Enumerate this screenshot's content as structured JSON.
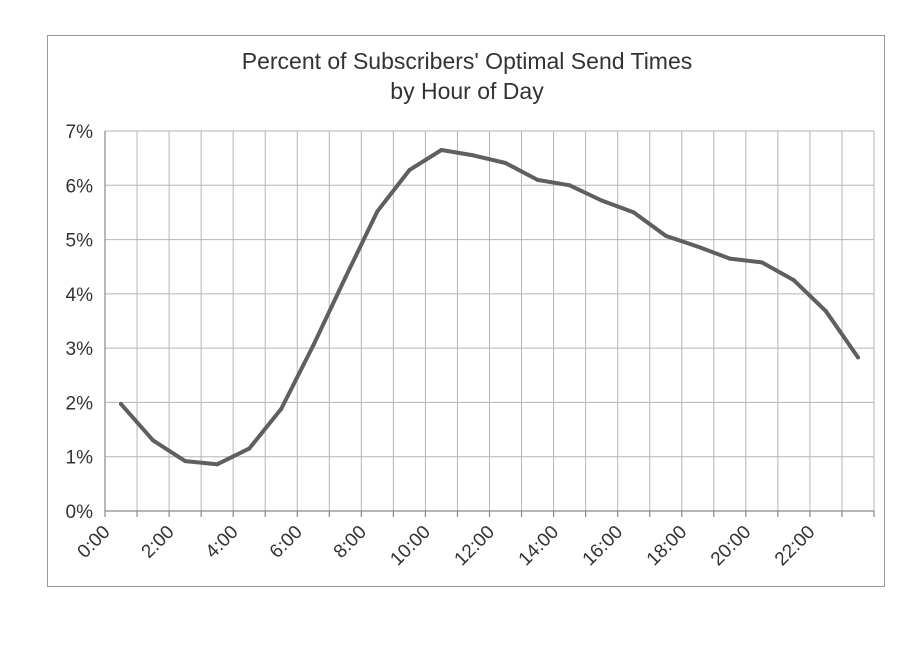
{
  "chart_data": {
    "type": "line",
    "title": [
      "Percent of Subscribers' Optimal Send Times",
      "by Hour of Day"
    ],
    "xlabel": "",
    "ylabel": "",
    "x": [
      0.5,
      1.5,
      2.5,
      3.5,
      4.5,
      5.5,
      6.5,
      7.5,
      8.5,
      9.5,
      10.5,
      11.5,
      12.5,
      13.5,
      14.5,
      15.5,
      16.5,
      17.5,
      18.5,
      19.5,
      20.5,
      21.5,
      22.5,
      23.5
    ],
    "x_ticks": [
      "0:00",
      "2:00",
      "4:00",
      "6:00",
      "8:00",
      "10:00",
      "12:00",
      "14:00",
      "16:00",
      "18:00",
      "20:00",
      "22:00"
    ],
    "x_tick_values": [
      0,
      2,
      4,
      6,
      8,
      10,
      12,
      14,
      16,
      18,
      20,
      22
    ],
    "xlim": [
      0,
      24
    ],
    "y_ticks": [
      "0%",
      "1%",
      "2%",
      "3%",
      "4%",
      "5%",
      "6%",
      "7%"
    ],
    "y_tick_values": [
      0,
      1,
      2,
      3,
      4,
      5,
      6,
      7
    ],
    "ylim": [
      0,
      7
    ],
    "grid": true,
    "legend": "none",
    "series": [
      {
        "values": [
          1.97,
          1.3,
          0.92,
          0.86,
          1.15,
          1.88,
          3.05,
          4.3,
          5.52,
          6.28,
          6.65,
          6.55,
          6.41,
          6.1,
          6.0,
          5.72,
          5.5,
          5.07,
          4.87,
          4.65,
          4.58,
          4.25,
          3.68,
          2.83
        ],
        "color": "#5f5f5f"
      }
    ]
  }
}
